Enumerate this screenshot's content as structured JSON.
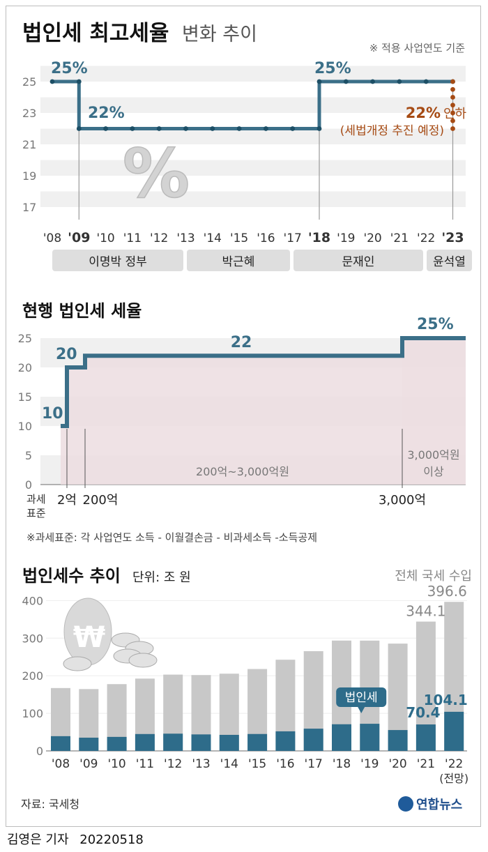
{
  "chart_data": [
    {
      "type": "line",
      "title": "법인세 최고세율",
      "title_suffix": "변화 추이",
      "note": "※ 적용 사업연도 기준",
      "yticks": [
        25,
        23,
        21,
        19,
        17
      ],
      "ylim": [
        16,
        26
      ],
      "x_labels": [
        "'08",
        "'09",
        "'10",
        "'11",
        "'12",
        "'13",
        "'14",
        "'15",
        "'16",
        "'17",
        "'18",
        "'19",
        "'20",
        "'21",
        "'22",
        "'23"
      ],
      "bold_labels": [
        "'09",
        "'18",
        "'23"
      ],
      "series": [
        {
          "x": [
            2008,
            2009,
            2009,
            2010,
            2011,
            2012,
            2013,
            2014,
            2015,
            2016,
            2017,
            2018,
            2018,
            2019,
            2020,
            2021,
            2022,
            2023
          ],
          "y": [
            25,
            25,
            22,
            22,
            22,
            22,
            22,
            22,
            22,
            22,
            22,
            22,
            25,
            25,
            25,
            25,
            25,
            25
          ]
        }
      ],
      "planned": {
        "from": 25,
        "to": 22,
        "label": "22% 인하",
        "sub": "(세법개정 추진 예정)"
      },
      "annotations": [
        "25%",
        "22%",
        "25%"
      ],
      "governments": [
        {
          "name": "이명박 정부",
          "from": 2009,
          "to": 2013
        },
        {
          "name": "박근혜",
          "from": 2013,
          "to": 2017
        },
        {
          "name": "문재인",
          "from": 2017,
          "to": 2022
        },
        {
          "name": "윤석열",
          "from": 2022,
          "to": 2023
        }
      ]
    },
    {
      "type": "step",
      "title": "현행 법인세 세율",
      "yticks": [
        25,
        20,
        15,
        10,
        5,
        0
      ],
      "ylim": [
        0,
        25
      ],
      "rates": [
        10,
        20,
        22,
        25
      ],
      "rate_labels": [
        "10",
        "20",
        "22",
        "25%"
      ],
      "x_labels": [
        "과세\n표준",
        "2억",
        "200억",
        "3,000억"
      ],
      "band_labels": [
        "200억~3,000억원",
        "3,000억원",
        "이상"
      ],
      "note": "※과세표준: 각 사업연도 소득 - 이월결손금 - 비과세소득 -소득공제"
    },
    {
      "type": "bar",
      "title": "법인세수 추이",
      "unit": "단위: 조 원",
      "legend_total": "전체 국세 수입",
      "legend_corp": "법인세",
      "categories": [
        "'08",
        "'09",
        "'10",
        "'11",
        "'12",
        "'13",
        "'14",
        "'15",
        "'16",
        "'17",
        "'18",
        "'19",
        "'20",
        "'21",
        "'22"
      ],
      "last_sub": "(전망)",
      "ylim": [
        0,
        410
      ],
      "yticks": [
        400,
        300,
        200,
        100,
        0
      ],
      "series": [
        {
          "name": "전체 국세 수입",
          "values": [
            167.3,
            164.5,
            177.7,
            192.4,
            203.0,
            201.9,
            205.5,
            217.9,
            242.6,
            265.4,
            293.6,
            293.5,
            285.5,
            344.1,
            396.6
          ]
        },
        {
          "name": "법인세",
          "values": [
            39.2,
            35.2,
            37.3,
            44.9,
            45.9,
            43.9,
            42.7,
            45.0,
            52.1,
            59.2,
            70.9,
            72.2,
            55.5,
            70.4,
            104.1
          ]
        }
      ],
      "value_labels": {
        "total_2021": "344.1",
        "total_2022": "396.6",
        "corp_2021": "70.4",
        "corp_2022": "104.1"
      },
      "source": "자료: 국세청",
      "logo": "연합뉴스"
    }
  ],
  "colors": {
    "line": "#3b6f88",
    "accent": "#a64b14",
    "bar_total": "#c8c8c8",
    "bar_corp": "#2e6c8a",
    "band": "#ecdde0",
    "grid": "#f0f0f0",
    "gov": "#dedede"
  },
  "footer": {
    "reporter": "김영은 기자",
    "date": "20220518"
  }
}
